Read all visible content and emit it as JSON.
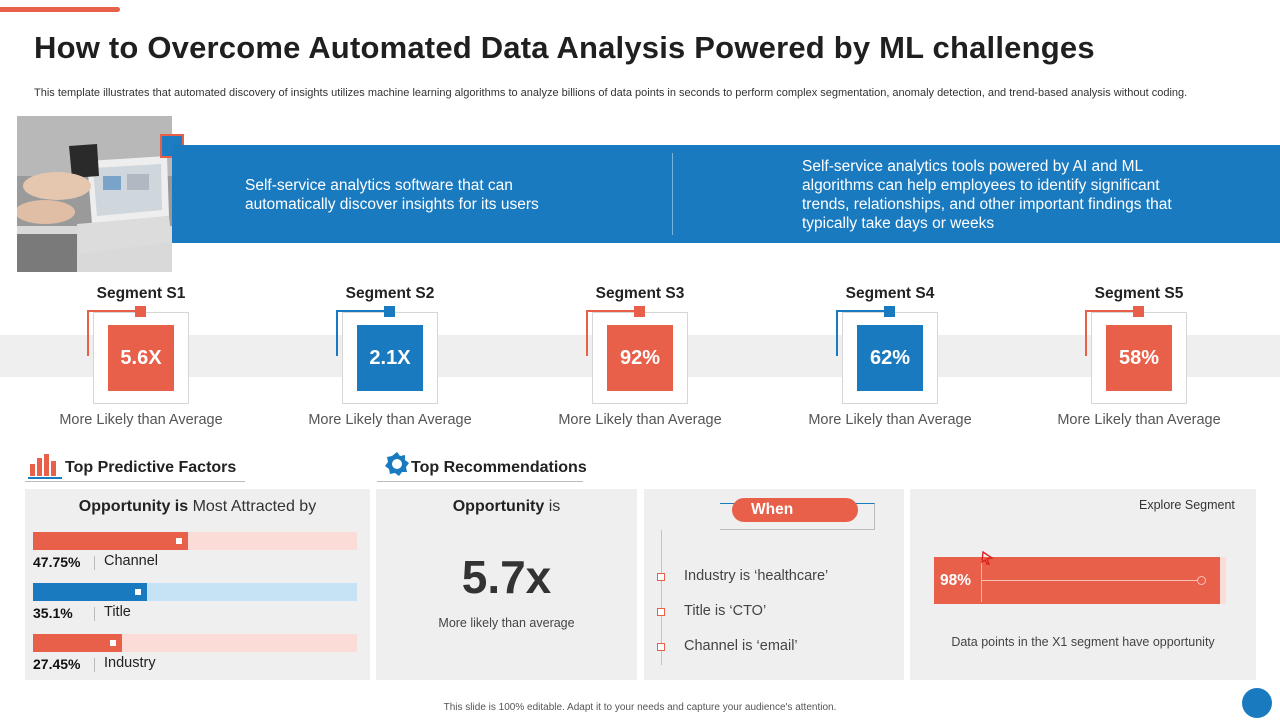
{
  "header": {
    "title": "How to Overcome Automated Data Analysis Powered by ML challenges",
    "subtitle": "This template illustrates that automated discovery of insights utilizes machine learning algorithms to analyze billions of data points in seconds to perform complex segmentation, anomaly detection, and trend-based analysis without coding."
  },
  "banner": {
    "left_text": "Self-service analytics software that can automatically discover insights for its users",
    "right_text": "Self-service analytics tools powered by AI and ML algorithms can help employees to identify significant trends, relationships, and other important findings that typically take days or weeks"
  },
  "segments": [
    {
      "title": "Segment S1",
      "value": "5.6X",
      "caption": "More Likely than Average",
      "color": "#e8604a"
    },
    {
      "title": "Segment S2",
      "value": "2.1X",
      "caption": "More Likely than Average",
      "color": "#1a7ac0"
    },
    {
      "title": "Segment S3",
      "value": "92%",
      "caption": "More Likely than Average",
      "color": "#e8604a"
    },
    {
      "title": "Segment S4",
      "value": "62%",
      "caption": "More Likely than Average",
      "color": "#1a7ac0"
    },
    {
      "title": "Segment S5",
      "value": "58%",
      "caption": "More Likely than Average",
      "color": "#e8604a"
    }
  ],
  "predictive": {
    "heading": "Top Predictive Factors",
    "panel_title_bold": "Opportunity is",
    "panel_title_rest": "Most Attracted by",
    "factors": [
      {
        "value": "47.75%",
        "label": "Channel",
        "level": 0.4775,
        "color": "#e8604a",
        "track": "#fbdcd6"
      },
      {
        "value": "35.1%",
        "label": "Title",
        "level": 0.351,
        "color": "#1a7ac0",
        "track": "#c6e2f5"
      },
      {
        "value": "27.45%",
        "label": "Industry",
        "level": 0.2745,
        "color": "#e8604a",
        "track": "#fbdcd6"
      }
    ]
  },
  "recommendations": {
    "heading": "Top Recommendations",
    "opportunity_bold": "Opportunity",
    "opportunity_rest": "is",
    "big_value": "5.7x",
    "big_caption": "More likely than average",
    "when_label": "When",
    "conditions": [
      "Industry is ‘healthcare’",
      "Title is ‘CTO’",
      "Channel is ‘email’"
    ],
    "explore_label": "Explore Segment",
    "explore_value": "98%",
    "explore_level": 0.98,
    "explore_caption": "Data points in the X1 segment have opportunity"
  },
  "footer": {
    "text": "This slide is 100% editable. Adapt it to your needs and capture your audience's attention."
  },
  "colors": {
    "accent_red": "#e8604a",
    "accent_blue": "#1a7ac0",
    "panel_gray": "#efefef"
  }
}
